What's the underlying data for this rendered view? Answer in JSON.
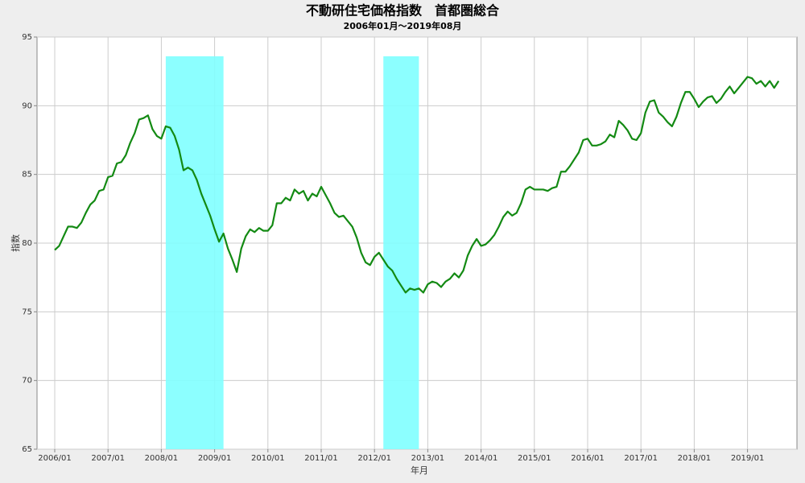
{
  "chart_data": {
    "type": "line",
    "title": "不動研住宅価格指数　首都圏総合",
    "subtitle": "2006年01月～2019年08月",
    "x_label": "年月",
    "y_label": "指数",
    "color": "#138a13",
    "grid": true,
    "ylim": [
      65,
      95
    ],
    "yticks": [
      65,
      70,
      75,
      80,
      85,
      90,
      95
    ],
    "bands": [
      {
        "start": 25,
        "end": 38,
        "top": 93.6,
        "color": "#80ffff"
      },
      {
        "start": 74,
        "end": 82,
        "top": 93.6,
        "color": "#80ffff"
      }
    ],
    "categories": [
      "2006/01",
      null,
      null,
      null,
      null,
      null,
      null,
      null,
      null,
      null,
      null,
      null,
      "2007/01",
      null,
      null,
      null,
      null,
      null,
      null,
      null,
      null,
      null,
      null,
      null,
      "2008/01",
      null,
      null,
      null,
      null,
      null,
      null,
      null,
      null,
      null,
      null,
      null,
      "2009/01",
      null,
      null,
      null,
      null,
      null,
      null,
      null,
      null,
      null,
      null,
      null,
      "2010/01",
      null,
      null,
      null,
      null,
      null,
      null,
      null,
      null,
      null,
      null,
      null,
      "2011/01",
      null,
      null,
      null,
      null,
      null,
      null,
      null,
      null,
      null,
      null,
      null,
      "2012/01",
      null,
      null,
      null,
      null,
      null,
      null,
      null,
      null,
      null,
      null,
      null,
      "2013/01",
      null,
      null,
      null,
      null,
      null,
      null,
      null,
      null,
      null,
      null,
      null,
      "2014/01",
      null,
      null,
      null,
      null,
      null,
      null,
      null,
      null,
      null,
      null,
      null,
      "2015/01",
      null,
      null,
      null,
      null,
      null,
      null,
      null,
      null,
      null,
      null,
      null,
      "2016/01",
      null,
      null,
      null,
      null,
      null,
      null,
      null,
      null,
      null,
      null,
      null,
      "2017/01",
      null,
      null,
      null,
      null,
      null,
      null,
      null,
      null,
      null,
      null,
      null,
      "2018/01",
      null,
      null,
      null,
      null,
      null,
      null,
      null,
      null,
      null,
      null,
      null,
      "2019/01",
      null,
      null,
      null,
      null,
      null,
      null,
      null
    ],
    "values": [
      79.5,
      79.8,
      80.5,
      81.2,
      81.2,
      81.1,
      81.5,
      82.2,
      82.8,
      83.1,
      83.8,
      83.9,
      84.8,
      84.9,
      85.8,
      85.9,
      86.4,
      87.3,
      88.0,
      89.0,
      89.1,
      89.3,
      88.3,
      87.8,
      87.6,
      88.5,
      88.4,
      87.8,
      86.8,
      85.3,
      85.5,
      85.3,
      84.6,
      83.6,
      82.8,
      82.0,
      81.0,
      80.1,
      80.7,
      79.6,
      78.8,
      77.9,
      79.6,
      80.5,
      81.0,
      80.8,
      81.1,
      80.9,
      80.9,
      81.3,
      82.9,
      82.9,
      83.3,
      83.1,
      83.9,
      83.6,
      83.8,
      83.1,
      83.6,
      83.4,
      84.1,
      83.5,
      82.9,
      82.2,
      81.9,
      82.0,
      81.6,
      81.2,
      80.4,
      79.3,
      78.6,
      78.4,
      79.0,
      79.3,
      78.8,
      78.3,
      78.0,
      77.4,
      76.9,
      76.4,
      76.7,
      76.6,
      76.7,
      76.4,
      77.0,
      77.2,
      77.1,
      76.8,
      77.2,
      77.4,
      77.8,
      77.5,
      78.0,
      79.1,
      79.8,
      80.3,
      79.8,
      79.9,
      80.2,
      80.6,
      81.2,
      81.9,
      82.3,
      82.0,
      82.2,
      82.9,
      83.9,
      84.1,
      83.9,
      83.9,
      83.9,
      83.8,
      84.0,
      84.1,
      85.2,
      85.2,
      85.6,
      86.1,
      86.6,
      87.5,
      87.6,
      87.1,
      87.1,
      87.2,
      87.4,
      87.9,
      87.7,
      88.9,
      88.6,
      88.2,
      87.6,
      87.5,
      88.0,
      89.5,
      90.3,
      90.4,
      89.5,
      89.2,
      88.8,
      88.5,
      89.2,
      90.2,
      91.0,
      91.0,
      90.5,
      89.9,
      90.3,
      90.6,
      90.7,
      90.2,
      90.5,
      91.0,
      91.4,
      90.9,
      91.3,
      91.7,
      92.1,
      92.0,
      91.6,
      91.8,
      91.4,
      91.8,
      91.3,
      91.8
    ]
  }
}
